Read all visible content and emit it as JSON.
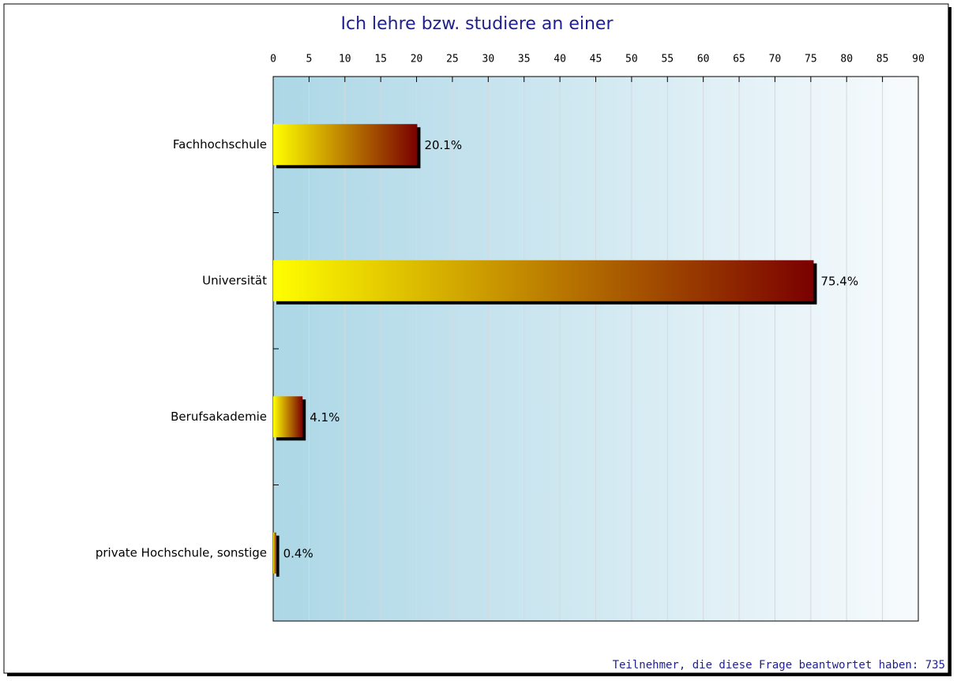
{
  "chart_data": {
    "type": "bar",
    "orientation": "horizontal",
    "title": "Ich lehre bzw. studiere an einer",
    "categories": [
      "Fachhochschule",
      "Universität",
      "Berufsakademie",
      "private Hochschule, sonstige"
    ],
    "values": [
      20.1,
      75.4,
      4.1,
      0.4
    ],
    "value_labels": [
      "20.1%",
      "75.4%",
      "4.1%",
      "0.4%"
    ],
    "color_gradient": [
      "#ffff00",
      "#7a0000"
    ],
    "xlim": [
      0,
      90
    ],
    "xticks": [
      0,
      5,
      10,
      15,
      20,
      25,
      30,
      35,
      40,
      45,
      50,
      55,
      60,
      65,
      70,
      75,
      80,
      85,
      90
    ],
    "grid": true,
    "footnote": "Teilnehmer, die diese Frage beantwortet haben: 735"
  }
}
